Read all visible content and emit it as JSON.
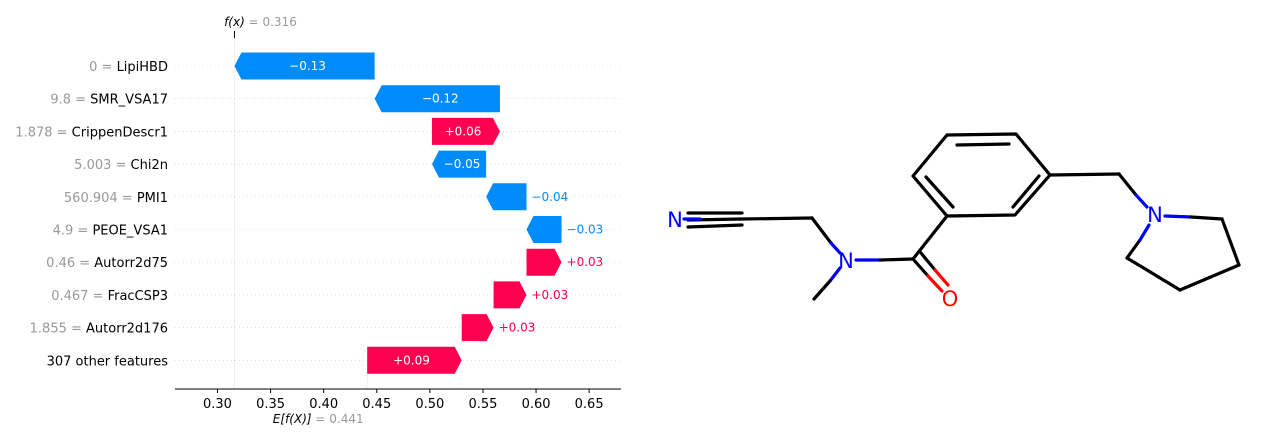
{
  "chart_data": {
    "type": "waterfall",
    "fx_label": "f(x)",
    "fx_value": "0.316",
    "base_label": "E[f(X)]",
    "base_value": "0.441",
    "fx": 0.316,
    "base": 0.441,
    "xlim": [
      0.26,
      0.68
    ],
    "xticks": [
      0.3,
      0.35,
      0.4,
      0.45,
      0.5,
      0.55,
      0.6,
      0.65
    ],
    "xtick_labels": [
      "0.30",
      "0.35",
      "0.40",
      "0.45",
      "0.50",
      "0.55",
      "0.60",
      "0.65"
    ],
    "colors": {
      "positive": "#ff0051",
      "negative": "#008bfb",
      "muted": "#999999"
    },
    "features": [
      {
        "value": "0",
        "name": "LipiHBD",
        "start": 0.448,
        "end": 0.316,
        "label": "−0.13",
        "sign": "neg"
      },
      {
        "value": "9.8",
        "name": "SMR_VSA17",
        "start": 0.566,
        "end": 0.448,
        "label": "−0.12",
        "sign": "neg"
      },
      {
        "value": "1.878",
        "name": "CrippenDescr1",
        "start": 0.502,
        "end": 0.566,
        "label": "+0.06",
        "sign": "pos"
      },
      {
        "value": "5.003",
        "name": "Chi2n",
        "start": 0.553,
        "end": 0.502,
        "label": "−0.05",
        "sign": "neg"
      },
      {
        "value": "560.904",
        "name": "PMI1",
        "start": 0.591,
        "end": 0.553,
        "label": "−0.04",
        "sign": "neg"
      },
      {
        "value": "4.9",
        "name": "PEOE_VSA1",
        "start": 0.624,
        "end": 0.591,
        "label": "−0.03",
        "sign": "neg"
      },
      {
        "value": "0.46",
        "name": "Autorr2d75",
        "start": 0.591,
        "end": 0.624,
        "label": "+0.03",
        "sign": "pos"
      },
      {
        "value": "0.467",
        "name": "FracCSP3",
        "start": 0.56,
        "end": 0.591,
        "label": "+0.03",
        "sign": "pos"
      },
      {
        "value": "1.855",
        "name": "Autorr2d176",
        "start": 0.53,
        "end": 0.56,
        "label": "+0.03",
        "sign": "pos"
      },
      {
        "value": "",
        "name": "307 other features",
        "start": 0.441,
        "end": 0.53,
        "label": "+0.09",
        "sign": "pos"
      }
    ]
  },
  "molecule": {
    "atoms": [
      "N",
      "N",
      "O",
      "N"
    ],
    "colors": {
      "bond": "#000000",
      "nitrogen": "#0000ff",
      "oxygen": "#ff0000"
    }
  }
}
